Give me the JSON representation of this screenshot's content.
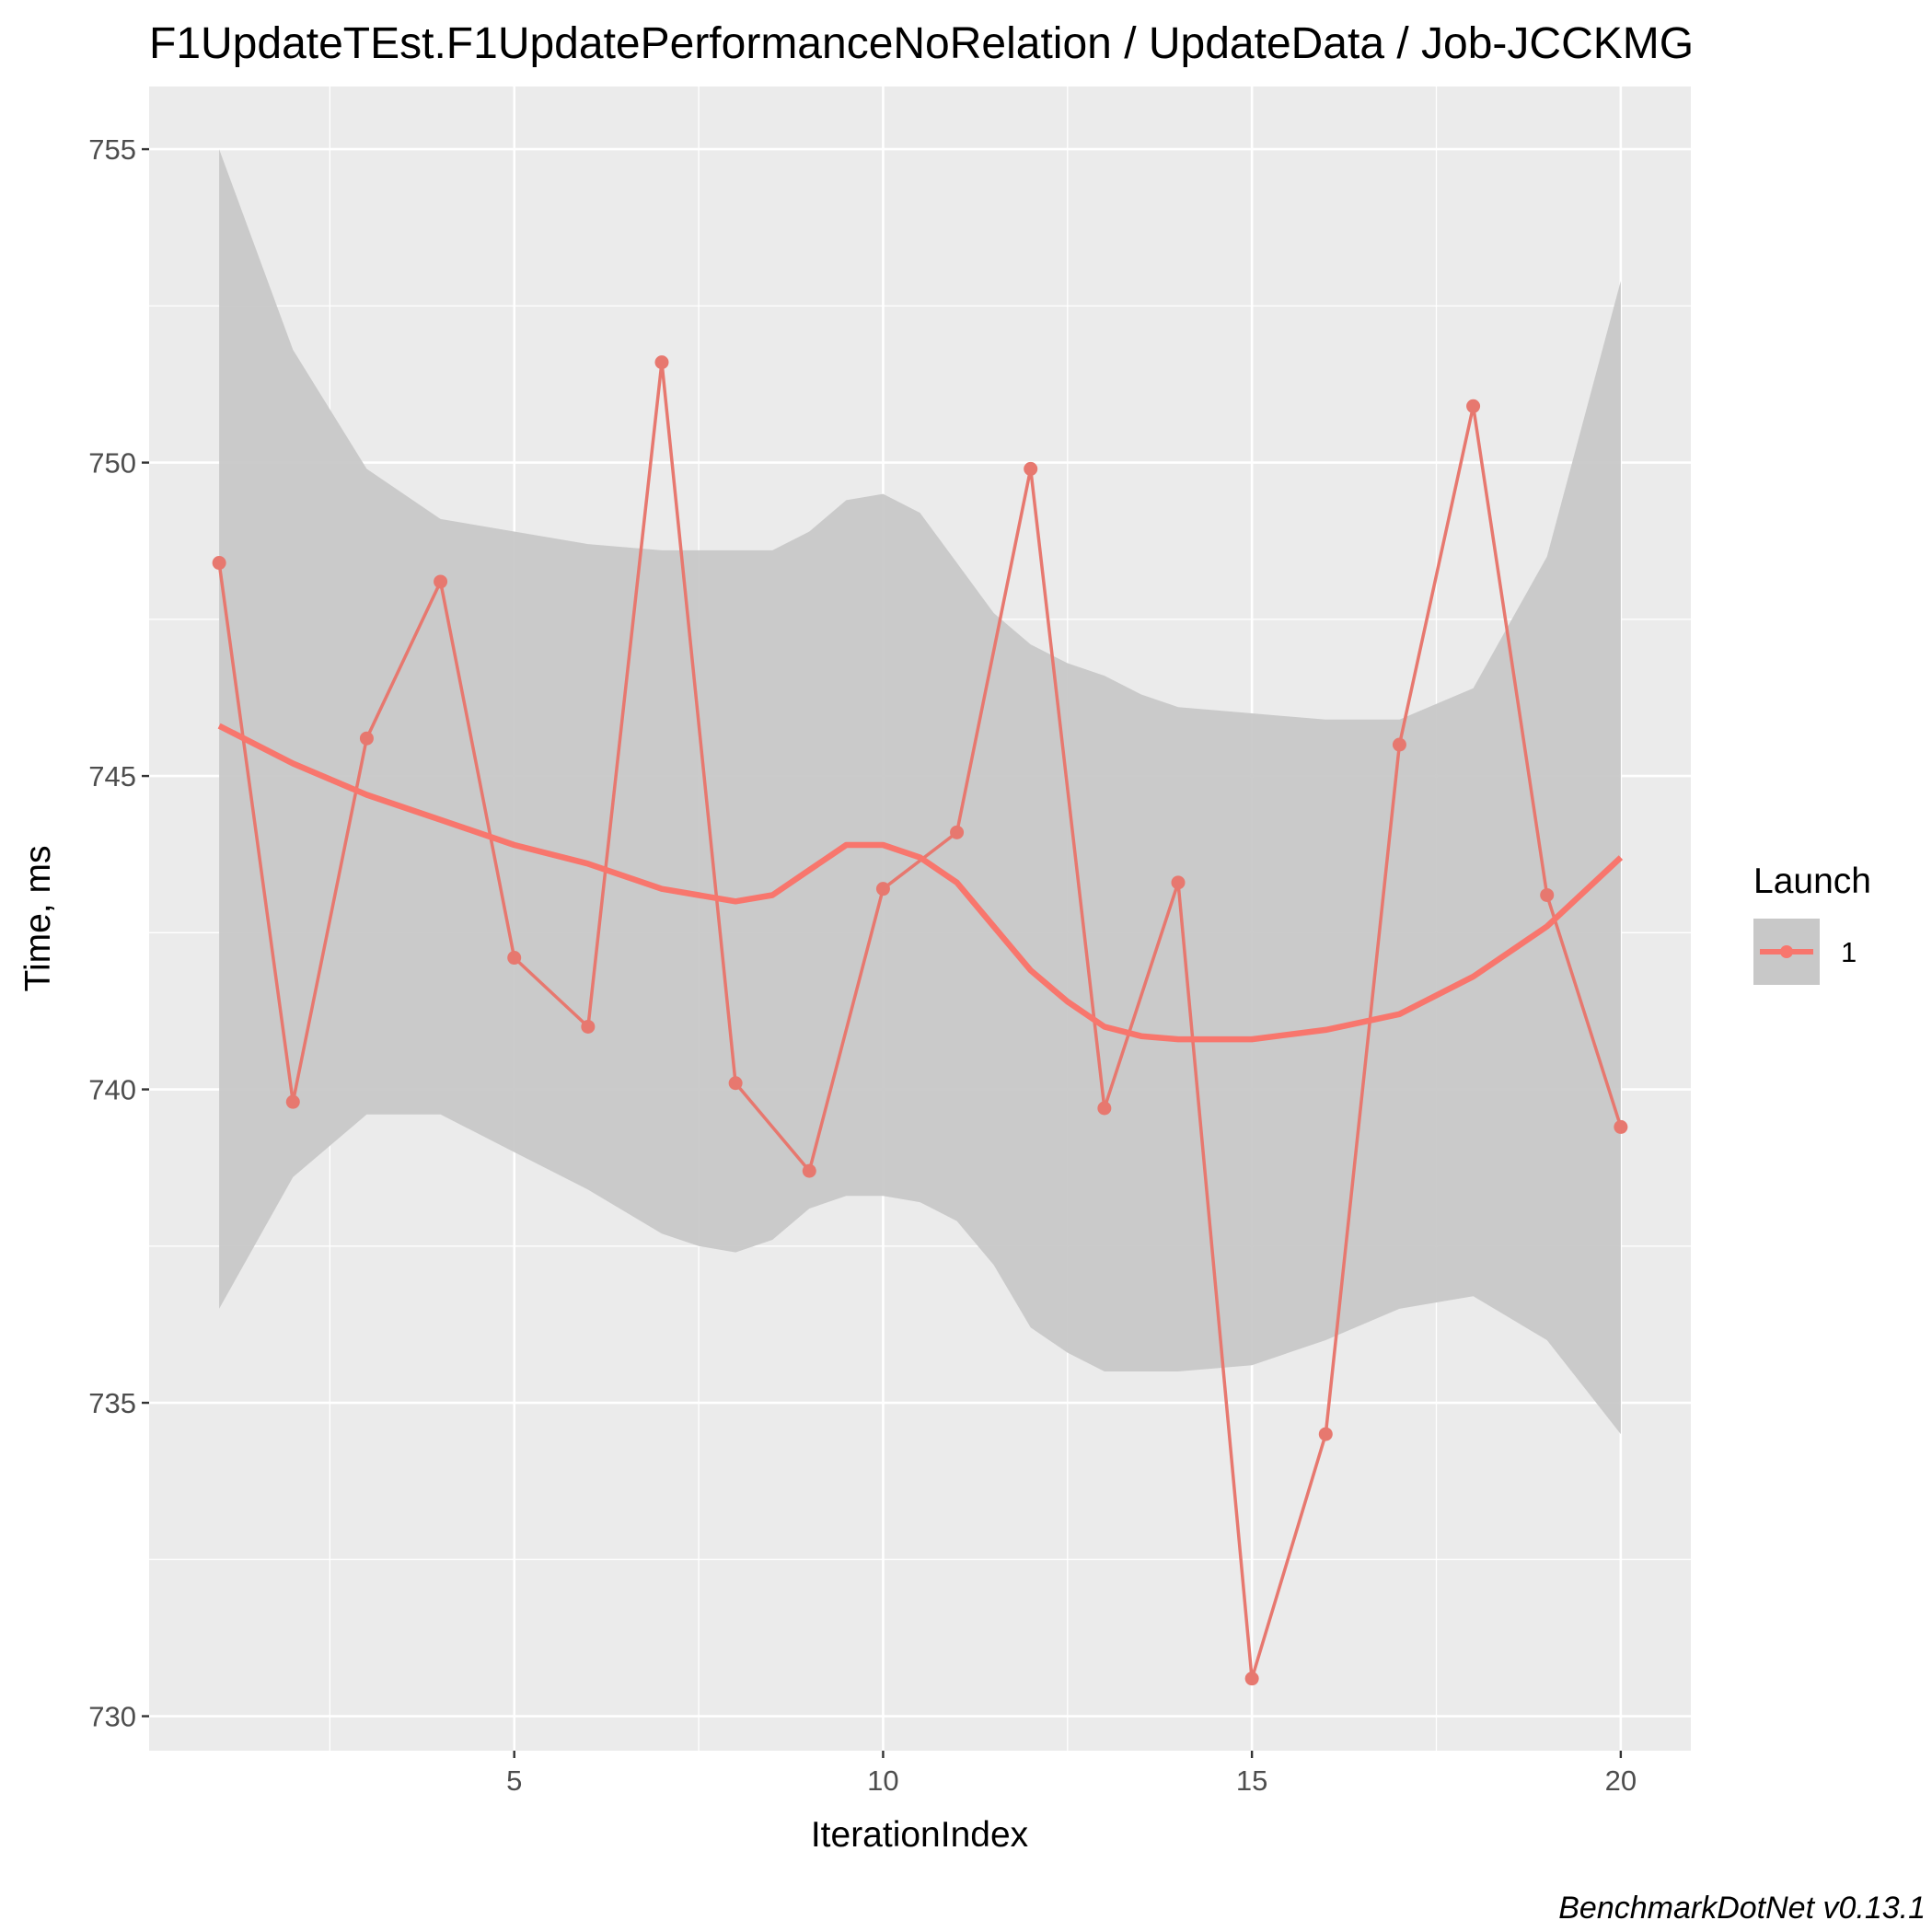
{
  "chart_data": {
    "type": "line",
    "title": "F1UpdateTEst.F1UpdatePerformanceNoRelation / UpdateData / Job-JCCKMG",
    "xlabel": "IterationIndex",
    "ylabel": "Time, ms",
    "caption": "BenchmarkDotNet v0.13.1",
    "xlim": [
      0.05,
      20.95
    ],
    "ylim": [
      729.45,
      756.0
    ],
    "x_ticks": [
      5,
      10,
      15,
      20
    ],
    "x_tick_labels": [
      "5",
      "10",
      "15",
      "20"
    ],
    "y_ticks": [
      730,
      735,
      740,
      745,
      750,
      755
    ],
    "y_tick_labels": [
      "730",
      "735",
      "740",
      "745",
      "750",
      "755"
    ],
    "grid": true,
    "legend": {
      "title": "Launch",
      "position": "right",
      "entries": [
        "1"
      ]
    },
    "colors": {
      "series": "#F8766D",
      "panel": "#EBEBEB",
      "band": "#C8C8C8",
      "grid": "#FFFFFF"
    },
    "series": [
      {
        "name": "1",
        "x": [
          1,
          2,
          3,
          4,
          5,
          6,
          7,
          8,
          9,
          10,
          11,
          12,
          13,
          14,
          15,
          16,
          17,
          18,
          19,
          20
        ],
        "values": [
          748.4,
          739.8,
          745.6,
          748.1,
          742.1,
          741.0,
          751.6,
          740.1,
          738.7,
          743.2,
          744.1,
          749.9,
          739.7,
          743.3,
          730.6,
          734.5,
          745.5,
          750.9,
          743.1,
          739.4
        ]
      }
    ],
    "smooth": {
      "x": [
        1,
        2,
        3,
        4,
        5,
        6,
        7,
        7.5,
        8,
        8.5,
        9,
        9.5,
        10,
        10.5,
        11,
        11.5,
        12,
        12.5,
        13,
        13.5,
        14,
        15,
        16,
        17,
        18,
        19,
        20
      ],
      "values": [
        745.8,
        745.2,
        744.7,
        744.3,
        743.9,
        743.6,
        743.2,
        743.1,
        743.0,
        743.1,
        743.5,
        743.9,
        743.9,
        743.7,
        743.3,
        742.6,
        741.9,
        741.4,
        741.0,
        740.85,
        740.8,
        740.8,
        740.95,
        741.2,
        741.8,
        742.6,
        743.7
      ],
      "ci_upper": [
        755.0,
        751.8,
        749.9,
        749.1,
        748.9,
        748.7,
        748.6,
        748.6,
        748.6,
        748.6,
        748.9,
        749.4,
        749.5,
        749.2,
        748.4,
        747.6,
        747.1,
        746.8,
        746.6,
        746.3,
        746.1,
        746.0,
        745.9,
        745.9,
        746.4,
        748.5,
        752.9
      ],
      "ci_lower": [
        736.5,
        738.6,
        739.6,
        739.6,
        739.0,
        738.4,
        737.7,
        737.5,
        737.4,
        737.6,
        738.1,
        738.3,
        738.3,
        738.2,
        737.9,
        737.2,
        736.2,
        735.8,
        735.5,
        735.5,
        735.5,
        735.6,
        736.0,
        736.5,
        736.7,
        736.0,
        734.5
      ]
    }
  }
}
